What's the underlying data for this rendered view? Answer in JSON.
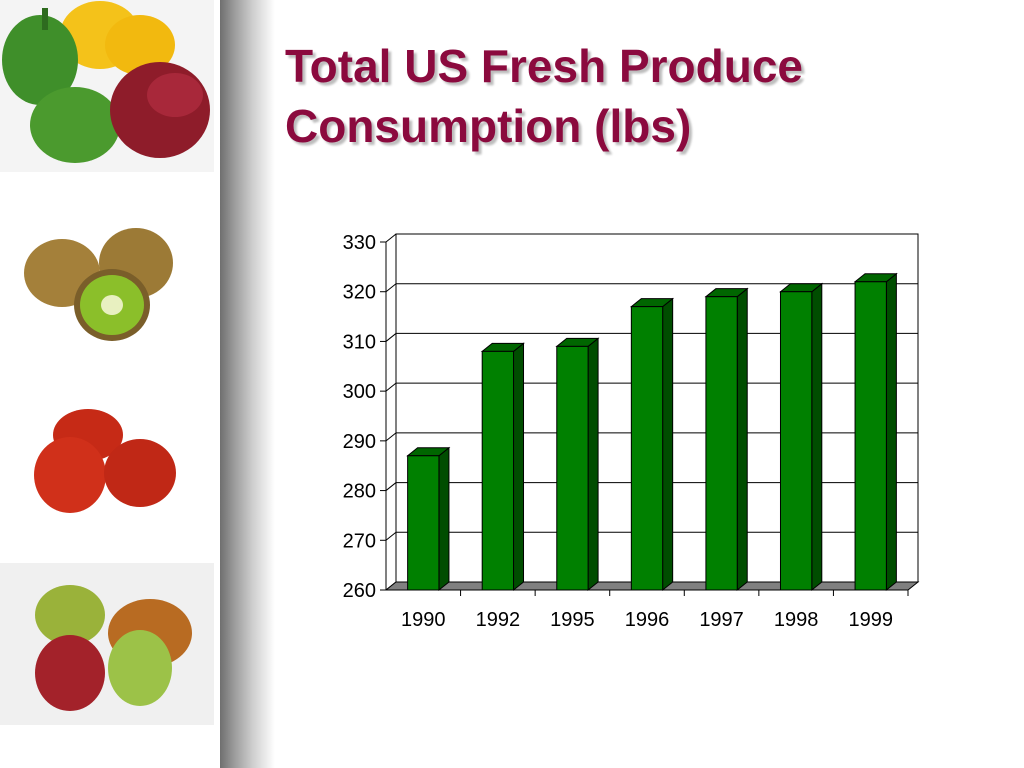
{
  "slide": {
    "title_line1": "Total US Fresh Produce",
    "title_line2": "Consumption (lbs)",
    "title_color": "#8b0a3e"
  },
  "sidebar": {
    "images": [
      "bell-peppers",
      "kiwis",
      "tomatoes",
      "pears"
    ]
  },
  "chart_data": {
    "type": "bar",
    "style": "3d",
    "categories": [
      "1990",
      "1992",
      "1995",
      "1996",
      "1997",
      "1998",
      "1999"
    ],
    "values": [
      287,
      308,
      309,
      317,
      319,
      320,
      322
    ],
    "title": "",
    "xlabel": "",
    "ylabel": "",
    "ylim": [
      260,
      330
    ],
    "yticks": [
      260,
      270,
      280,
      290,
      300,
      310,
      320,
      330
    ],
    "grid": true,
    "legend": "none",
    "bar_color": "#008000"
  }
}
